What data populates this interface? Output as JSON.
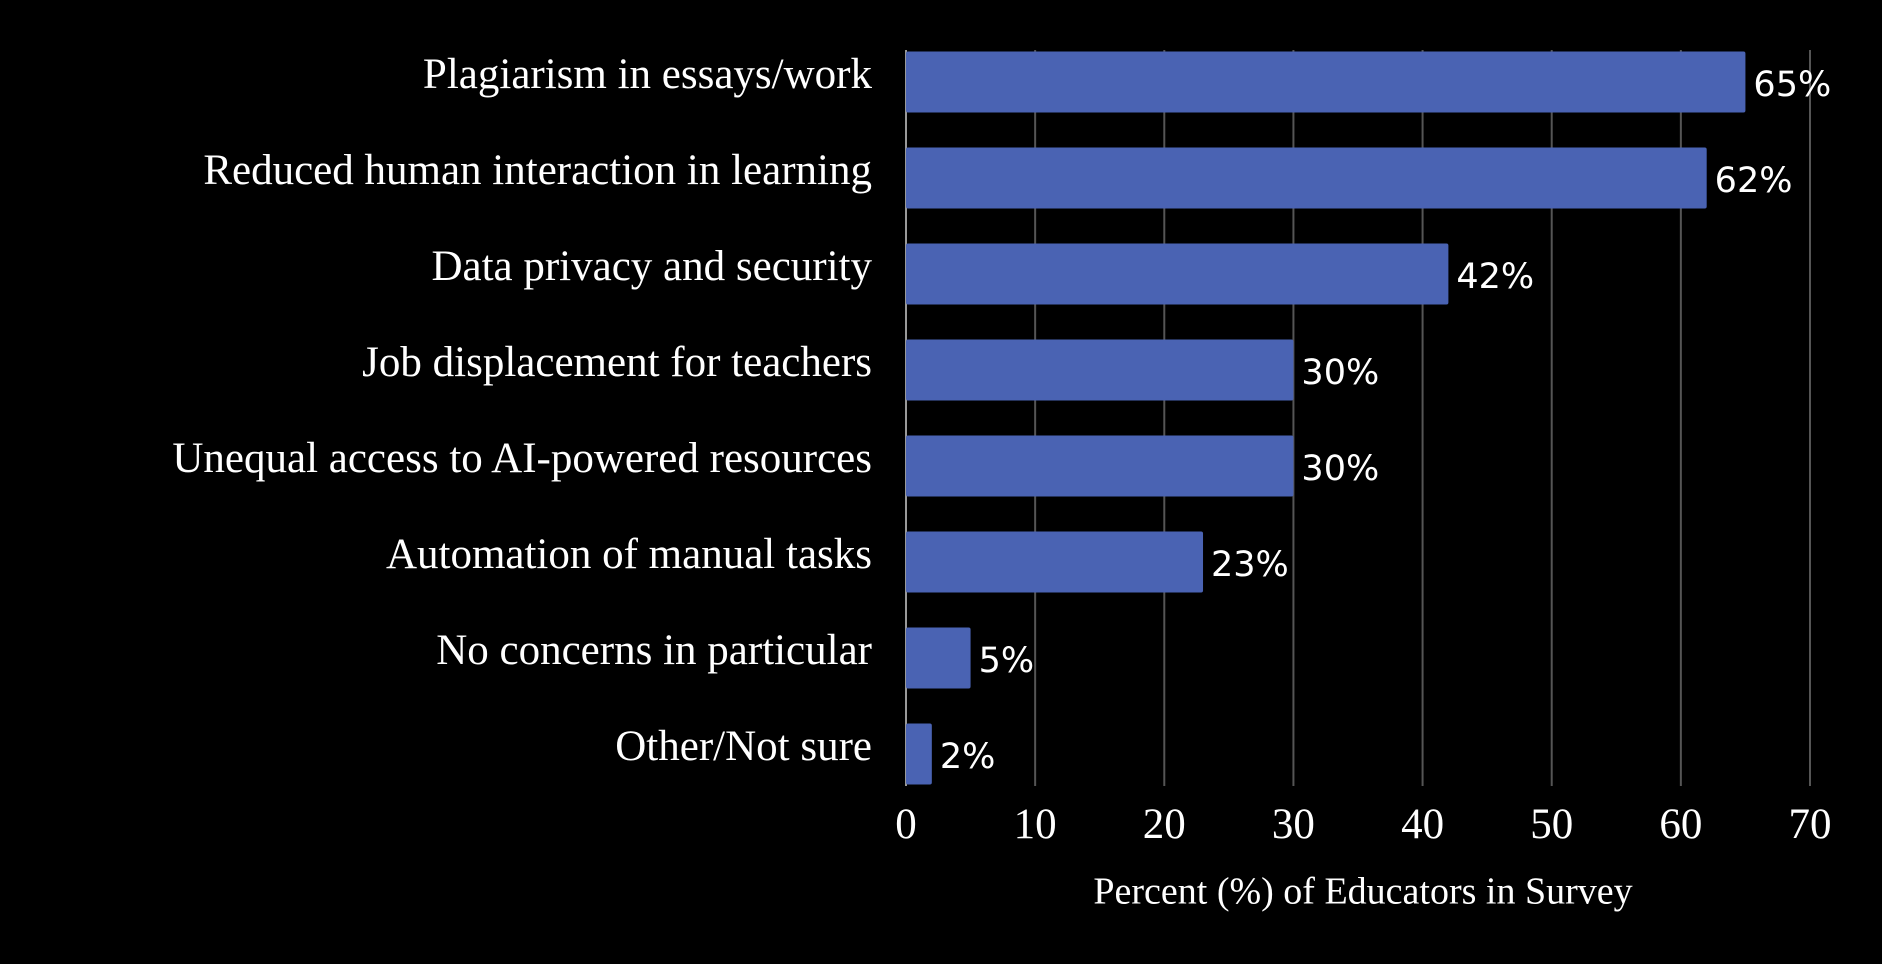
{
  "chart_data": {
    "type": "bar",
    "orientation": "horizontal",
    "categories": [
      "Plagiarism in essays/work",
      "Reduced human interaction in learning",
      "Data privacy and security",
      "Job displacement for teachers",
      "Unequal access to AI-powered resources",
      "Automation of manual tasks",
      "No concerns in particular",
      "Other/Not sure"
    ],
    "values": [
      65,
      62,
      42,
      30,
      30,
      23,
      5,
      2
    ],
    "value_labels": [
      "65%",
      "62%",
      "42%",
      "30%",
      "30%",
      "23%",
      "5%",
      "2%"
    ],
    "color": "#4a63b3",
    "xlabel": "Percent (%) of Educators in Survey",
    "xlim": [
      0,
      70
    ],
    "xticks": [
      0,
      10,
      20,
      30,
      40,
      50,
      60,
      70
    ],
    "grid": true
  }
}
